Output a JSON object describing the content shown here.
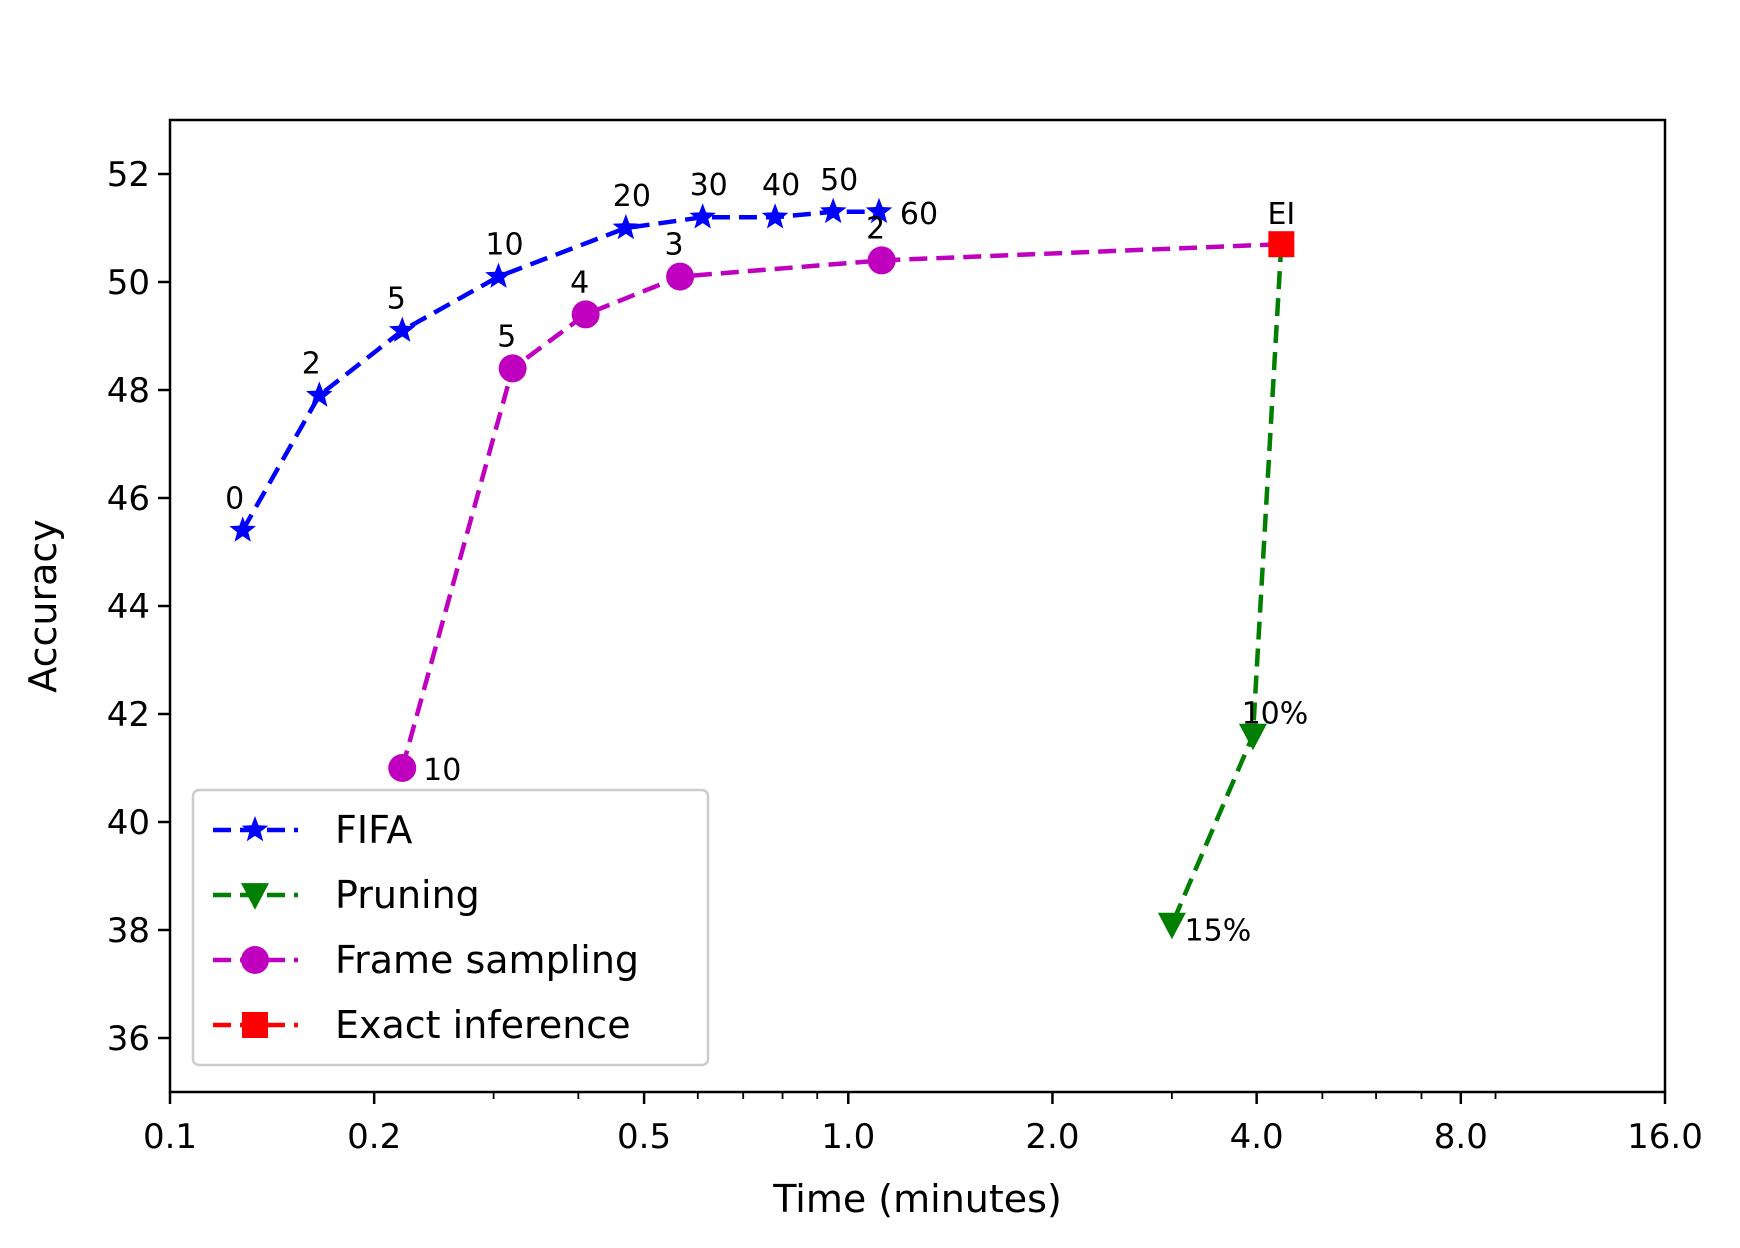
{
  "chart_data": {
    "type": "line",
    "xlabel": "Time (minutes)",
    "ylabel": "Accuracy",
    "xscale": "log2",
    "xlim": [
      0.1,
      16.0
    ],
    "ylim": [
      35,
      53
    ],
    "xticks": [
      0.1,
      0.2,
      0.5,
      1.0,
      2.0,
      4.0,
      8.0,
      16.0
    ],
    "xtick_labels": [
      "0.1",
      "0.2",
      "0.5",
      "1.0",
      "2.0",
      "4.0",
      "8.0",
      "16.0"
    ],
    "yticks": [
      36,
      38,
      40,
      42,
      44,
      46,
      48,
      50,
      52
    ],
    "ytick_labels": [
      "36",
      "38",
      "40",
      "42",
      "44",
      "46",
      "48",
      "50",
      "52"
    ],
    "grid": false,
    "legend_position": "bottom-left",
    "series": [
      {
        "name": "FIFA",
        "color": "#0000ff",
        "marker": "star",
        "linestyle": "dashed",
        "points": [
          {
            "x": 0.128,
            "y": 45.4,
            "label": "0"
          },
          {
            "x": 0.166,
            "y": 47.9,
            "label": "2"
          },
          {
            "x": 0.22,
            "y": 49.1,
            "label": "5"
          },
          {
            "x": 0.305,
            "y": 50.1,
            "label": "10"
          },
          {
            "x": 0.47,
            "y": 51.0,
            "label": "20"
          },
          {
            "x": 0.61,
            "y": 51.2,
            "label": "30"
          },
          {
            "x": 0.78,
            "y": 51.2,
            "label": "40"
          },
          {
            "x": 0.95,
            "y": 51.3,
            "label": "50"
          },
          {
            "x": 1.11,
            "y": 51.3,
            "label": "60"
          }
        ]
      },
      {
        "name": "Pruning",
        "color": "#007f00",
        "marker": "triangle-down",
        "linestyle": "dashed",
        "points": [
          {
            "x": 4.35,
            "y": 50.7,
            "label": ""
          },
          {
            "x": 3.95,
            "y": 41.6,
            "label": "10%"
          },
          {
            "x": 3.0,
            "y": 38.1,
            "label": "15%"
          }
        ]
      },
      {
        "name": "Frame sampling",
        "color": "#bf00bf",
        "marker": "circle",
        "linestyle": "dashed",
        "points": [
          {
            "x": 0.22,
            "y": 41.0,
            "label": "10"
          },
          {
            "x": 0.32,
            "y": 48.4,
            "label": "5"
          },
          {
            "x": 0.41,
            "y": 49.4,
            "label": "4"
          },
          {
            "x": 0.565,
            "y": 50.1,
            "label": "3"
          },
          {
            "x": 1.12,
            "y": 50.4,
            "label": "2"
          },
          {
            "x": 4.35,
            "y": 50.7,
            "label": ""
          }
        ]
      },
      {
        "name": "Exact inference",
        "color": "#ff0000",
        "marker": "square",
        "linestyle": "dashed",
        "points": [
          {
            "x": 4.35,
            "y": 50.7,
            "label": "EI"
          }
        ]
      }
    ]
  }
}
